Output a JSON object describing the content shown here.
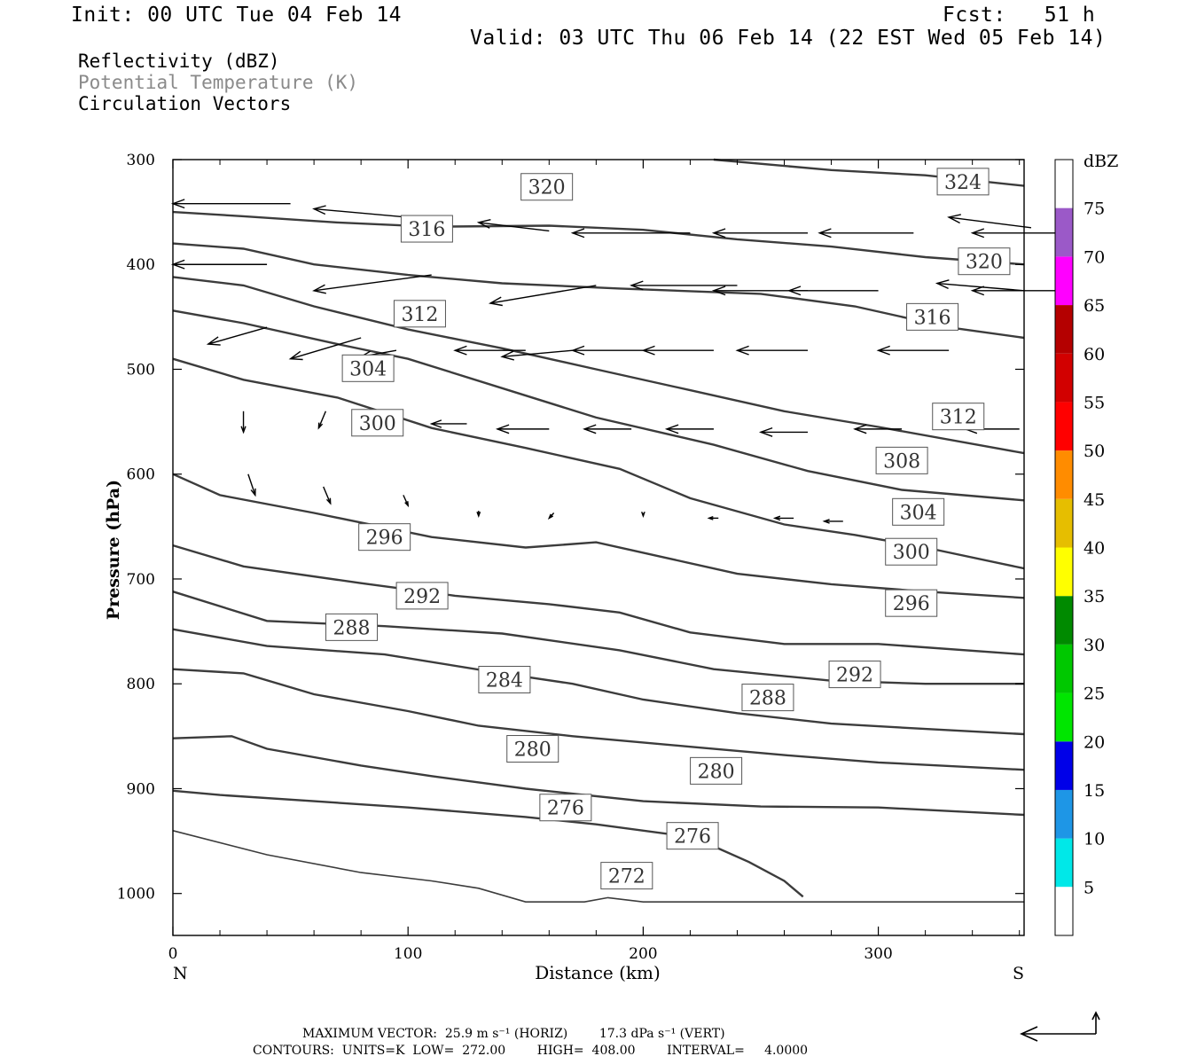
{
  "header": {
    "init": "Init: 00 UTC Tue 04 Feb 14",
    "fcst": "Fcst:   51 h",
    "valid": "Valid: 03 UTC Thu 06 Feb 14 (22 EST Wed 05 Feb 14)"
  },
  "legend_lines": {
    "reflectivity": "Reflectivity (dBZ)",
    "theta": "Potential Temperature (K)",
    "vectors": "Circulation Vectors"
  },
  "colors": {
    "theta_contour": "#3c3c3c",
    "theta_legend": "#8a8a8a",
    "vector": "#000000",
    "colorbar": [
      "#00e8e8",
      "#1e96e6",
      "#0000e8",
      "#00e600",
      "#00c800",
      "#008a00",
      "#ffff00",
      "#e6be00",
      "#ff8c00",
      "#ff0000",
      "#d20000",
      "#b40000",
      "#ff00ff",
      "#9b59c8"
    ]
  },
  "chart_data": {
    "type": "contour",
    "xlabel": "Distance (km)",
    "ylabel": "Pressure (hPa)",
    "xlim": [
      0,
      362
    ],
    "ylim": [
      1040,
      300
    ],
    "x_ticks": [
      0,
      100,
      200,
      300
    ],
    "y_ticks": [
      300,
      400,
      500,
      600,
      700,
      800,
      900,
      1000
    ],
    "x_tick_labels": [
      "0",
      "100",
      "200",
      "300"
    ],
    "y_tick_labels": [
      "300",
      "400",
      "500",
      "600",
      "700",
      "800",
      "900",
      "1000"
    ],
    "left_end_label": "N",
    "right_end_label": "S",
    "colorbar": {
      "unit": "dBZ",
      "levels": [
        "5",
        "10",
        "15",
        "20",
        "25",
        "30",
        "35",
        "40",
        "45",
        "50",
        "55",
        "60",
        "65",
        "70",
        "75"
      ]
    },
    "contours": [
      {
        "level": 272,
        "points": [
          [
            0,
            940
          ],
          [
            40,
            963
          ],
          [
            80,
            980
          ],
          [
            110,
            988
          ],
          [
            130,
            995
          ],
          [
            150,
            1008
          ],
          [
            175,
            1008
          ],
          [
            185,
            1004
          ],
          [
            200,
            1008
          ],
          [
            250,
            1008
          ],
          [
            300,
            1008
          ],
          [
            362,
            1008
          ]
        ]
      },
      {
        "level": 276,
        "points": [
          [
            0,
            902
          ],
          [
            20,
            906
          ],
          [
            60,
            912
          ],
          [
            100,
            918
          ],
          [
            150,
            927
          ],
          [
            180,
            934
          ],
          [
            220,
            946
          ],
          [
            230,
            955
          ],
          [
            245,
            970
          ],
          [
            260,
            988
          ],
          [
            268,
            1003
          ]
        ]
      },
      {
        "level": 280,
        "points": [
          [
            0,
            852
          ],
          [
            25,
            850
          ],
          [
            40,
            862
          ],
          [
            80,
            878
          ],
          [
            110,
            888
          ],
          [
            150,
            900
          ],
          [
            200,
            912
          ],
          [
            250,
            917
          ],
          [
            300,
            918
          ],
          [
            362,
            925
          ]
        ]
      },
      {
        "level": 284,
        "points": [
          [
            0,
            786
          ],
          [
            30,
            790
          ],
          [
            60,
            810
          ],
          [
            100,
            826
          ],
          [
            130,
            840
          ],
          [
            170,
            850
          ],
          [
            220,
            860
          ],
          [
            260,
            868
          ],
          [
            300,
            875
          ],
          [
            362,
            882
          ]
        ]
      },
      {
        "level": 288,
        "points": [
          [
            0,
            748
          ],
          [
            40,
            764
          ],
          [
            90,
            772
          ],
          [
            140,
            790
          ],
          [
            170,
            800
          ],
          [
            200,
            815
          ],
          [
            240,
            828
          ],
          [
            280,
            838
          ],
          [
            320,
            843
          ],
          [
            362,
            848
          ]
        ]
      },
      {
        "level": 292,
        "points": [
          [
            0,
            712
          ],
          [
            40,
            740
          ],
          [
            90,
            745
          ],
          [
            140,
            752
          ],
          [
            190,
            768
          ],
          [
            230,
            786
          ],
          [
            280,
            797
          ],
          [
            320,
            800
          ],
          [
            362,
            800
          ]
        ]
      },
      {
        "level": 296,
        "points": [
          [
            0,
            668
          ],
          [
            30,
            688
          ],
          [
            80,
            704
          ],
          [
            120,
            716
          ],
          [
            160,
            724
          ],
          [
            190,
            732
          ],
          [
            220,
            751
          ],
          [
            260,
            762
          ],
          [
            300,
            762
          ],
          [
            362,
            772
          ]
        ]
      },
      {
        "level": 300,
        "points": [
          [
            0,
            600
          ],
          [
            20,
            620
          ],
          [
            60,
            637
          ],
          [
            110,
            660
          ],
          [
            150,
            670
          ],
          [
            180,
            665
          ],
          [
            210,
            680
          ],
          [
            240,
            695
          ],
          [
            280,
            705
          ],
          [
            320,
            712
          ],
          [
            362,
            718
          ]
        ]
      },
      {
        "level": 304,
        "points": [
          [
            0,
            490
          ],
          [
            30,
            510
          ],
          [
            70,
            527
          ],
          [
            110,
            556
          ],
          [
            150,
            575
          ],
          [
            190,
            595
          ],
          [
            220,
            623
          ],
          [
            260,
            648
          ],
          [
            290,
            658
          ],
          [
            320,
            670
          ],
          [
            362,
            690
          ]
        ]
      },
      {
        "level": 308,
        "points": [
          [
            0,
            444
          ],
          [
            30,
            456
          ],
          [
            70,
            476
          ],
          [
            100,
            490
          ],
          [
            140,
            518
          ],
          [
            180,
            546
          ],
          [
            230,
            572
          ],
          [
            270,
            597
          ],
          [
            310,
            615
          ],
          [
            362,
            625
          ]
        ]
      },
      {
        "level": 312,
        "points": [
          [
            0,
            412
          ],
          [
            30,
            420
          ],
          [
            60,
            440
          ],
          [
            100,
            462
          ],
          [
            140,
            480
          ],
          [
            180,
            500
          ],
          [
            220,
            520
          ],
          [
            260,
            540
          ],
          [
            300,
            555
          ],
          [
            362,
            580
          ]
        ]
      },
      {
        "level": 316,
        "points": [
          [
            0,
            380
          ],
          [
            30,
            385
          ],
          [
            60,
            400
          ],
          [
            100,
            410
          ],
          [
            140,
            418
          ],
          [
            190,
            423
          ],
          [
            250,
            428
          ],
          [
            290,
            440
          ],
          [
            330,
            460
          ],
          [
            362,
            470
          ]
        ]
      },
      {
        "level": 320,
        "points": [
          [
            0,
            350
          ],
          [
            30,
            354
          ],
          [
            70,
            360
          ],
          [
            110,
            364
          ],
          [
            160,
            363
          ],
          [
            200,
            367
          ],
          [
            240,
            376
          ],
          [
            280,
            383
          ],
          [
            320,
            393
          ],
          [
            362,
            400
          ]
        ]
      },
      {
        "level": 324,
        "points": [
          [
            230,
            300
          ],
          [
            280,
            310
          ],
          [
            320,
            315
          ],
          [
            362,
            325
          ]
        ]
      }
    ],
    "contour_labels": [
      {
        "text": "320",
        "x": 159,
        "y": 326
      },
      {
        "text": "324",
        "x": 336,
        "y": 321
      },
      {
        "text": "316",
        "x": 108,
        "y": 366
      },
      {
        "text": "320",
        "x": 345,
        "y": 397
      },
      {
        "text": "312",
        "x": 105,
        "y": 447
      },
      {
        "text": "316",
        "x": 323,
        "y": 450
      },
      {
        "text": "304",
        "x": 83,
        "y": 499
      },
      {
        "text": "300",
        "x": 87,
        "y": 551
      },
      {
        "text": "312",
        "x": 334,
        "y": 545
      },
      {
        "text": "308",
        "x": 310,
        "y": 587
      },
      {
        "text": "304",
        "x": 317,
        "y": 636
      },
      {
        "text": "296",
        "x": 90,
        "y": 660
      },
      {
        "text": "300",
        "x": 314,
        "y": 674
      },
      {
        "text": "292",
        "x": 106,
        "y": 716
      },
      {
        "text": "296",
        "x": 314,
        "y": 723
      },
      {
        "text": "288",
        "x": 76,
        "y": 746
      },
      {
        "text": "292",
        "x": 290,
        "y": 791
      },
      {
        "text": "284",
        "x": 141,
        "y": 796
      },
      {
        "text": "288",
        "x": 253,
        "y": 813
      },
      {
        "text": "280",
        "x": 153,
        "y": 862
      },
      {
        "text": "280",
        "x": 231,
        "y": 883
      },
      {
        "text": "276",
        "x": 167,
        "y": 918
      },
      {
        "text": "276",
        "x": 221,
        "y": 945
      },
      {
        "text": "272",
        "x": 193,
        "y": 983
      }
    ],
    "vectors": [
      [
        0,
        342,
        50,
        342
      ],
      [
        60,
        347,
        110,
        357
      ],
      [
        130,
        360,
        160,
        368
      ],
      [
        170,
        370,
        220,
        370
      ],
      [
        230,
        370,
        270,
        370
      ],
      [
        275,
        370,
        315,
        370
      ],
      [
        330,
        355,
        365,
        365
      ],
      [
        340,
        370,
        380,
        370
      ],
      [
        0,
        400,
        40,
        400
      ],
      [
        60,
        425,
        110,
        410
      ],
      [
        135,
        437,
        180,
        420
      ],
      [
        195,
        420,
        240,
        420
      ],
      [
        230,
        425,
        270,
        425
      ],
      [
        262,
        425,
        300,
        425
      ],
      [
        325,
        418,
        362,
        425
      ],
      [
        340,
        425,
        380,
        425
      ],
      [
        15,
        476,
        40,
        460
      ],
      [
        50,
        490,
        80,
        470
      ],
      [
        80,
        488,
        95,
        482
      ],
      [
        120,
        482,
        150,
        482
      ],
      [
        140,
        488,
        170,
        482
      ],
      [
        170,
        482,
        200,
        482
      ],
      [
        200,
        482,
        230,
        482
      ],
      [
        240,
        482,
        270,
        482
      ],
      [
        300,
        482,
        330,
        482
      ],
      [
        30,
        560,
        30,
        540
      ],
      [
        62,
        556,
        65,
        540
      ],
      [
        110,
        552,
        125,
        552
      ],
      [
        138,
        557,
        160,
        557
      ],
      [
        175,
        557,
        195,
        557
      ],
      [
        210,
        557,
        230,
        557
      ],
      [
        250,
        560,
        270,
        560
      ],
      [
        290,
        557,
        310,
        557
      ],
      [
        337,
        557,
        360,
        557
      ],
      [
        35,
        620,
        32,
        600
      ],
      [
        67,
        628,
        64,
        612
      ],
      [
        100,
        630,
        98,
        620
      ],
      [
        130,
        640,
        130,
        635
      ],
      [
        160,
        642,
        162,
        637
      ],
      [
        200,
        640,
        200,
        637
      ],
      [
        228,
        642,
        232,
        642
      ],
      [
        256,
        642,
        264,
        642
      ],
      [
        277,
        645,
        285,
        645
      ]
    ]
  },
  "footer": {
    "max_vector": "MAXIMUM VECTOR:  25.9 m s⁻¹ (HORIZ)        17.3 dPa s⁻¹ (VERT)",
    "contours": "CONTOURS:  UNITS=K  LOW=  272.00        HIGH=  408.00        INTERVAL=     4.0000"
  }
}
